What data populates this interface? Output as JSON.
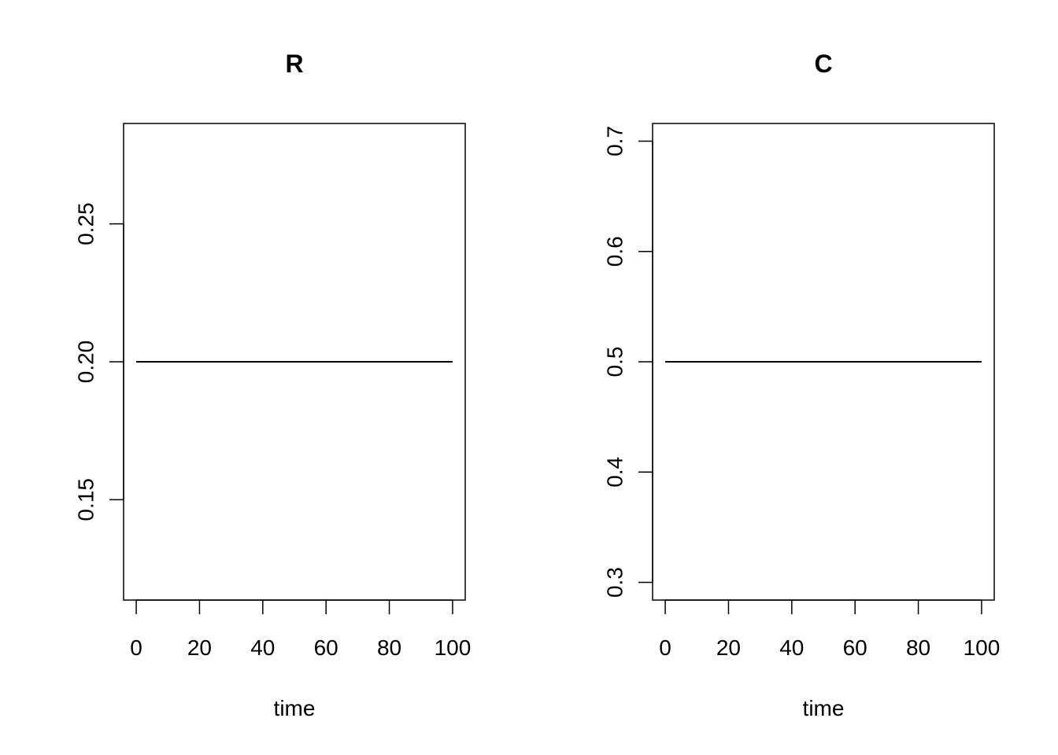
{
  "chart_data": [
    {
      "type": "line",
      "title": "R",
      "x_label": "time",
      "x": [
        0,
        100
      ],
      "series": [
        {
          "name": "R",
          "color": "#000000",
          "values": [
            0.2,
            0.2
          ]
        }
      ],
      "xlim": [
        -4,
        104
      ],
      "xticks": [
        0,
        20,
        40,
        60,
        80,
        100
      ],
      "ylim": [
        0.1136,
        0.2864
      ],
      "yticks": [
        0.15,
        {
          "value": 0.2,
          "label": "0.20"
        },
        0.25
      ]
    },
    {
      "type": "line",
      "title": "C",
      "x_label": "time",
      "x": [
        0,
        100
      ],
      "series": [
        {
          "name": "C",
          "color": "#000000",
          "values": [
            0.5,
            0.5
          ]
        }
      ],
      "xlim": [
        -4,
        104
      ],
      "xticks": [
        0,
        20,
        40,
        60,
        80,
        100
      ],
      "ylim": [
        0.284,
        0.716
      ],
      "yticks": [
        0.3,
        0.4,
        0.5,
        0.6,
        0.7
      ]
    }
  ]
}
